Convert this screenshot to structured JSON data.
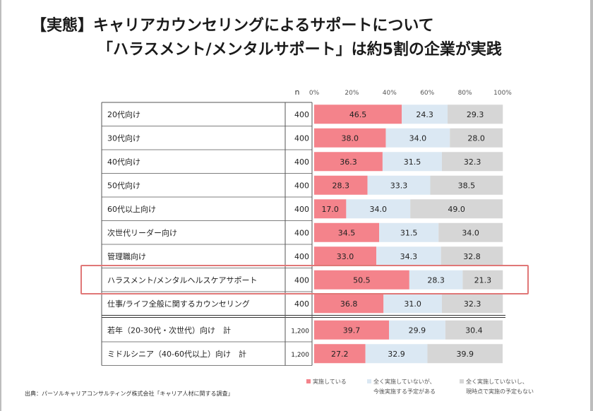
{
  "title": {
    "line1": "【実態】キャリアカウンセリングによるサポートについて",
    "line2": "「ハラスメント/メンタルサポート」は約5割の企業が実践"
  },
  "colors": {
    "implemented": "#f4838b",
    "not_yet_planned": "#dbe8f3",
    "no_plan": "#d6d6d6"
  },
  "chart_data": {
    "type": "bar",
    "orientation": "horizontal",
    "stacked": true,
    "n_label": "n",
    "xlim": [
      0,
      100
    ],
    "x_ticks": [
      "0%",
      "20%",
      "40%",
      "60%",
      "80%",
      "100%"
    ],
    "categories": [
      "20代向け",
      "30代向け",
      "40代向け",
      "50代向け",
      "60代以上向け",
      "次世代リーダー向け",
      "管理職向け",
      "ハラスメント/メンタルヘルスケアサポート",
      "仕事/ライフ全般に関するカウンセリング",
      "若年（20-30代・次世代）向け　計",
      "ミドルシニア（40-60代以上）向け　計"
    ],
    "n": [
      "400",
      "400",
      "400",
      "400",
      "400",
      "400",
      "400",
      "400",
      "400",
      "1,200",
      "1,200"
    ],
    "series": [
      {
        "name": "実施している",
        "values": [
          46.5,
          38.0,
          36.3,
          28.3,
          17.0,
          34.5,
          33.0,
          50.5,
          36.8,
          39.7,
          27.2
        ]
      },
      {
        "name": "全く実施していないが、今後実施する予定がある",
        "values": [
          24.3,
          34.0,
          31.5,
          33.3,
          34.0,
          31.5,
          34.3,
          28.3,
          31.0,
          29.9,
          32.9
        ]
      },
      {
        "name": "全く実施していないし、現時点で実施の予定もない",
        "values": [
          29.3,
          28.0,
          32.3,
          38.5,
          49.0,
          34.0,
          32.8,
          21.3,
          32.3,
          30.4,
          39.9
        ]
      }
    ],
    "highlighted_category": "ハラスメント/メンタルヘルスケアサポート"
  },
  "legend": {
    "item1": "実施している",
    "item2_line1": "全く実施していないが、",
    "item2_line2": "今後実施する予定がある",
    "item3_line1": "全く実施していないし、",
    "item3_line2": "現時点で実施の予定もない"
  },
  "source": "出典：パーソルキャリアコンサルティング株式会社「キャリア人材に関する調査」"
}
